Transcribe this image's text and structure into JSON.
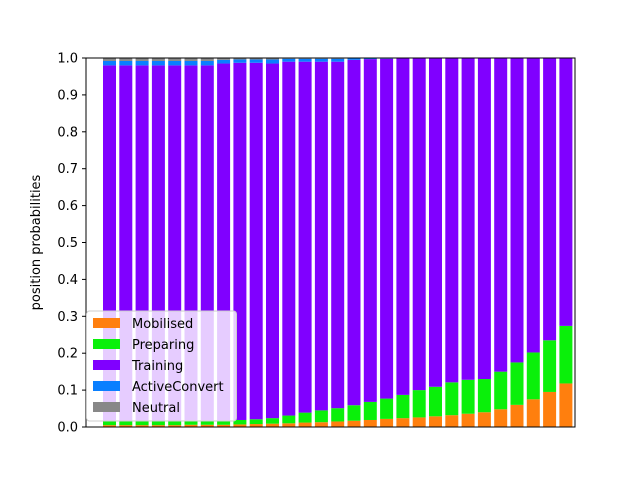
{
  "chart_data": {
    "type": "bar",
    "stacked": true,
    "title": "",
    "xlabel": "",
    "ylabel": "position probabilities",
    "ylim": [
      0,
      1.0
    ],
    "yticks": [
      "0.0",
      "0.1",
      "0.2",
      "0.3",
      "0.4",
      "0.5",
      "0.6",
      "0.7",
      "0.8",
      "0.9",
      "1.0"
    ],
    "x_tick_labels_shown": false,
    "grid": false,
    "legend_position": "lower-left",
    "series": [
      {
        "name": "Mobilised",
        "color": "#ff7f0e",
        "values": [
          0.005,
          0.005,
          0.005,
          0.005,
          0.005,
          0.006,
          0.006,
          0.006,
          0.007,
          0.008,
          0.009,
          0.01,
          0.012,
          0.013,
          0.015,
          0.017,
          0.019,
          0.022,
          0.024,
          0.026,
          0.029,
          0.032,
          0.036,
          0.04,
          0.048,
          0.06,
          0.075,
          0.095,
          0.118
        ]
      },
      {
        "name": "Preparing",
        "color": "#0af00a",
        "values": [
          0.012,
          0.012,
          0.012,
          0.012,
          0.012,
          0.012,
          0.012,
          0.012,
          0.012,
          0.013,
          0.015,
          0.021,
          0.027,
          0.032,
          0.036,
          0.042,
          0.049,
          0.055,
          0.063,
          0.074,
          0.08,
          0.089,
          0.092,
          0.09,
          0.102,
          0.115,
          0.127,
          0.14,
          0.156
        ]
      },
      {
        "name": "Training",
        "color": "#8000ff",
        "values": [
          0.963,
          0.963,
          0.963,
          0.963,
          0.963,
          0.962,
          0.962,
          0.967,
          0.968,
          0.966,
          0.961,
          0.959,
          0.951,
          0.945,
          0.939,
          0.936,
          0.929,
          0.921,
          0.912,
          0.899,
          0.891,
          0.879,
          0.872,
          0.87,
          0.85,
          0.825,
          0.798,
          0.765,
          0.726
        ]
      },
      {
        "name": "ActiveConvert",
        "color": "#0a7fff",
        "values": [
          0.012,
          0.012,
          0.012,
          0.012,
          0.012,
          0.012,
          0.012,
          0.01,
          0.009,
          0.009,
          0.011,
          0.008,
          0.008,
          0.008,
          0.008,
          0.004,
          0.003,
          0.002,
          0.001,
          0.001,
          0.0,
          0.0,
          0.0,
          0.0,
          0.0,
          0.0,
          0.0,
          0.0,
          0.0
        ]
      },
      {
        "name": "Neutral",
        "color": "#888888",
        "values": [
          0.008,
          0.008,
          0.008,
          0.008,
          0.008,
          0.008,
          0.008,
          0.005,
          0.004,
          0.004,
          0.004,
          0.002,
          0.002,
          0.002,
          0.002,
          0.001,
          0.0,
          0.0,
          0.0,
          0.0,
          0.0,
          0.0,
          0.0,
          0.0,
          0.0,
          0.0,
          0.0,
          0.0,
          0.0
        ]
      }
    ]
  }
}
